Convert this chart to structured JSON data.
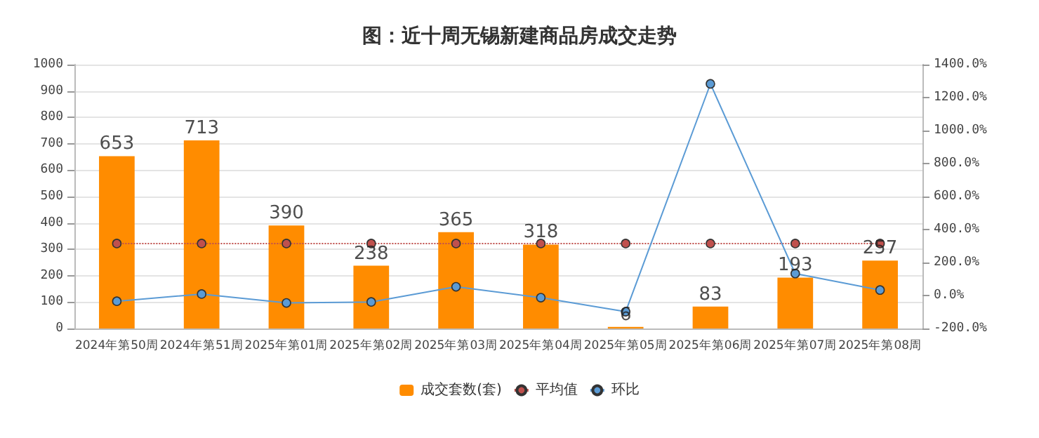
{
  "chart_data": {
    "type": "bar",
    "title": "图：近十周无锡新建商品房成交走势",
    "categories": [
      "2024年第50周",
      "2024年第51周",
      "2025年第01周",
      "2025年第02周",
      "2025年第03周",
      "2025年第04周",
      "2025年第05周",
      "2025年第06周",
      "2025年第07周",
      "2025年第08周"
    ],
    "series": [
      {
        "name": "成交套数(套)",
        "color": "#ff8c00",
        "data_labels": true,
        "values": [
          653,
          713,
          390,
          238,
          365,
          318,
          6,
          83,
          193,
          257
        ]
      },
      {
        "name": "平均值",
        "type": "line",
        "color": "#c0504d",
        "line_style": "dotted",
        "marker": "circle",
        "values": [
          322,
          322,
          322,
          322,
          322,
          322,
          322,
          322,
          322,
          322
        ]
      },
      {
        "name": "环比",
        "type": "line",
        "axis": "y2",
        "color": "#5b9bd5",
        "line_style": "solid",
        "marker": "circle",
        "values": [
          -35,
          9,
          -45,
          -39,
          53,
          -13,
          -98,
          1283,
          133,
          33
        ]
      }
    ],
    "ylim": [
      0,
      1000
    ],
    "yticks": [
      0,
      100,
      200,
      300,
      400,
      500,
      600,
      700,
      800,
      900,
      1000
    ],
    "y2lim": [
      -200,
      1400
    ],
    "y2ticks": [
      {
        "value": -200,
        "label": "-200.0%"
      },
      {
        "value": 0,
        "label": "0.0%"
      },
      {
        "value": 200,
        "label": "200.0%"
      },
      {
        "value": 400,
        "label": "400.0%"
      },
      {
        "value": 600,
        "label": "600.0%"
      },
      {
        "value": 800,
        "label": "800.0%"
      },
      {
        "value": 1000,
        "label": "1000.0%"
      },
      {
        "value": 1200,
        "label": "1200.0%"
      },
      {
        "value": 1400,
        "label": "1400.0%"
      }
    ],
    "grid": "y",
    "legend": "bottom"
  }
}
